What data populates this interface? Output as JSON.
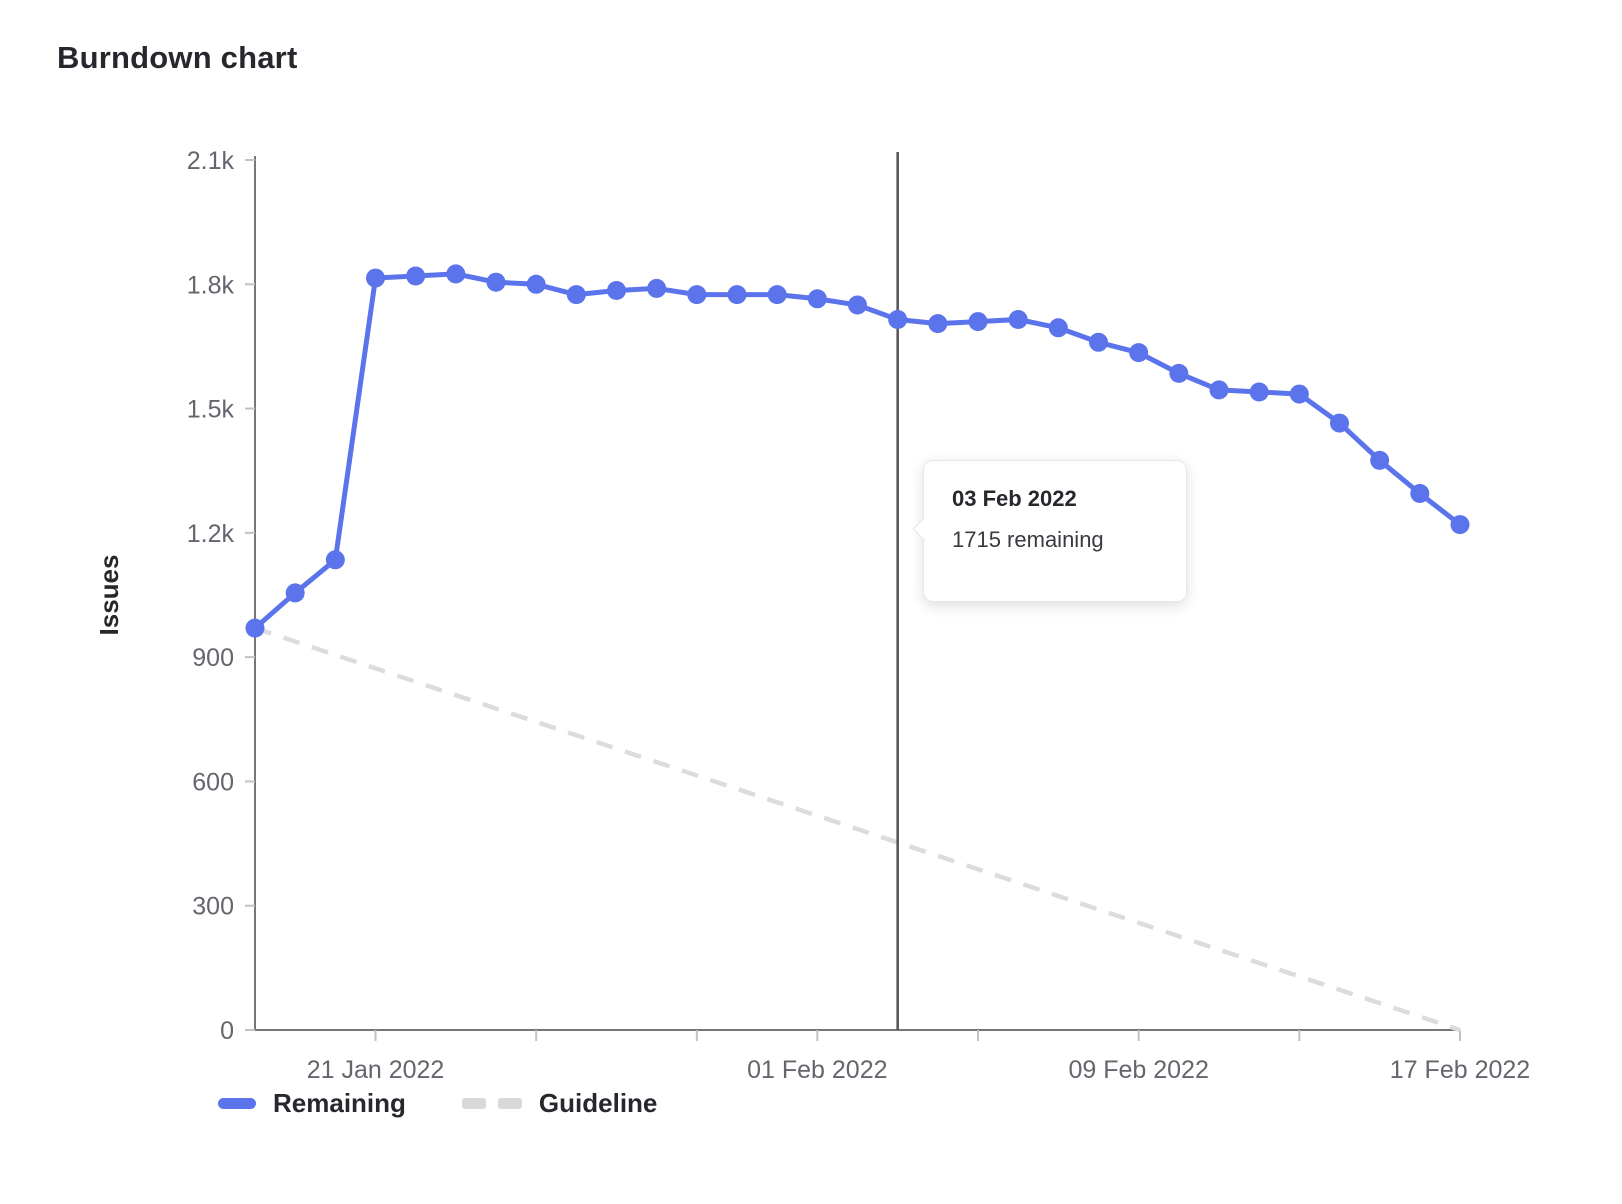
{
  "page": {
    "title": "Burndown chart"
  },
  "tooltip": {
    "title": "03 Feb 2022",
    "value": "1715 remaining"
  },
  "legend": {
    "items": [
      {
        "label": "Remaining",
        "color": "#5b74eb",
        "style": "solid"
      },
      {
        "label": "Guideline",
        "color": "#d9d9d9",
        "style": "dashed"
      }
    ]
  },
  "colors": {
    "series_blue": "#5b74eb",
    "guideline_gray": "#dcdcde",
    "axis_line": "#77767b",
    "tick_mark": "#c2c2c6",
    "axis_text": "#66656e",
    "marker_line": "#525257",
    "heading_text": "#28272d"
  },
  "chart_data": {
    "type": "line",
    "title": "Burndown chart",
    "xlabel": "",
    "ylabel": "Issues",
    "ylim": [
      0,
      2100
    ],
    "grid": false,
    "legend_position": "bottom",
    "y_ticks": [
      {
        "value": 0,
        "label": "0"
      },
      {
        "value": 300,
        "label": "300"
      },
      {
        "value": 600,
        "label": "600"
      },
      {
        "value": 900,
        "label": "900"
      },
      {
        "value": 1200,
        "label": "1.2k"
      },
      {
        "value": 1500,
        "label": "1.5k"
      },
      {
        "value": 1800,
        "label": "1.8k"
      },
      {
        "value": 2100,
        "label": "2.1k"
      }
    ],
    "x": [
      "18 Jan 2022",
      "19 Jan 2022",
      "20 Jan 2022",
      "21 Jan 2022",
      "22 Jan 2022",
      "23 Jan 2022",
      "24 Jan 2022",
      "25 Jan 2022",
      "26 Jan 2022",
      "27 Jan 2022",
      "28 Jan 2022",
      "29 Jan 2022",
      "30 Jan 2022",
      "31 Jan 2022",
      "01 Feb 2022",
      "02 Feb 2022",
      "03 Feb 2022",
      "04 Feb 2022",
      "05 Feb 2022",
      "06 Feb 2022",
      "07 Feb 2022",
      "08 Feb 2022",
      "09 Feb 2022",
      "10 Feb 2022",
      "11 Feb 2022",
      "12 Feb 2022",
      "13 Feb 2022",
      "14 Feb 2022",
      "15 Feb 2022",
      "16 Feb 2022",
      "17 Feb 2022"
    ],
    "x_ticks": [
      {
        "day_index": 3,
        "label": "21 Jan 2022"
      },
      {
        "day_index": 7,
        "label": ""
      },
      {
        "day_index": 11,
        "label": ""
      },
      {
        "day_index": 14,
        "label": "01 Feb 2022"
      },
      {
        "day_index": 18,
        "label": ""
      },
      {
        "day_index": 22,
        "label": "09 Feb 2022"
      },
      {
        "day_index": 26,
        "label": ""
      },
      {
        "day_index": 30,
        "label": "17 Feb 2022"
      }
    ],
    "series": [
      {
        "name": "Remaining",
        "style": "solid",
        "color": "#5b74eb",
        "values": [
          970,
          1055,
          1135,
          1815,
          1820,
          1825,
          1805,
          1800,
          1775,
          1785,
          1790,
          1775,
          1775,
          1775,
          1765,
          1750,
          1715,
          1705,
          1710,
          1715,
          1695,
          1660,
          1635,
          1585,
          1545,
          1540,
          1535,
          1465,
          1375,
          1295,
          1220
        ]
      },
      {
        "name": "Guideline",
        "style": "dashed",
        "color": "#dcdcde",
        "x": [
          "18 Jan 2022",
          "17 Feb 2022"
        ],
        "values": [
          970,
          0
        ]
      }
    ],
    "marker": {
      "type": "vertical-line",
      "day_index": 16,
      "date": "03 Feb 2022"
    },
    "tooltip": {
      "date": "03 Feb 2022",
      "remaining": 1715
    }
  }
}
